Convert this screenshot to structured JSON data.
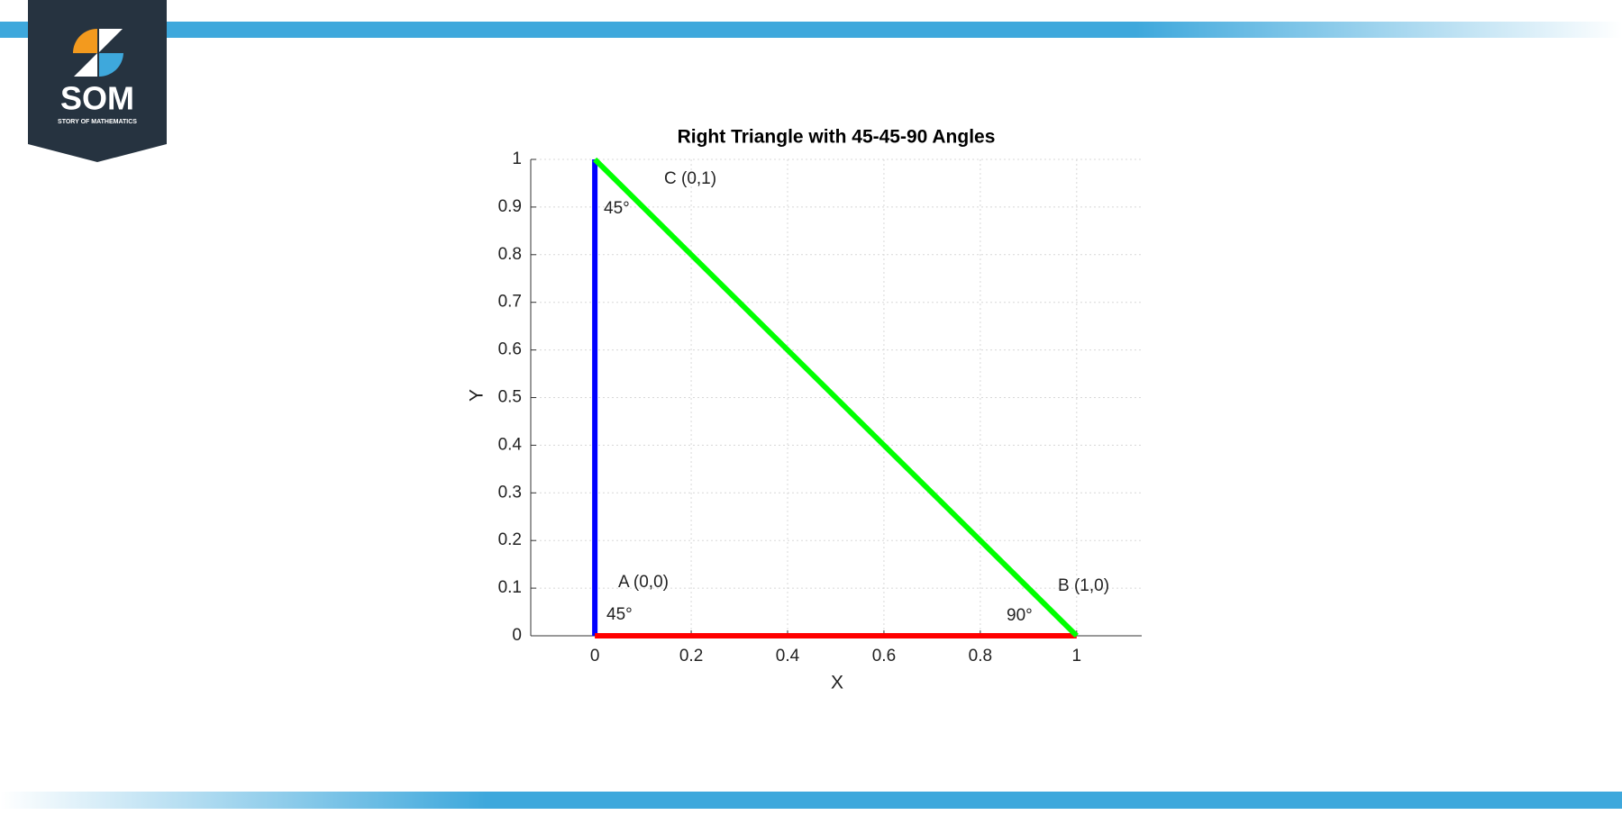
{
  "logo": {
    "title": "SOM",
    "subtitle": "STORY OF MATHEMATICS"
  },
  "chart_data": {
    "type": "line",
    "title": "Right Triangle with 45-45-90 Angles",
    "x_label": "X",
    "y_label": "Y",
    "series": [
      {
        "color": "#0000ff",
        "x": [
          0,
          0
        ],
        "values": [
          0,
          1
        ]
      },
      {
        "color": "#ff0000",
        "x": [
          0,
          1
        ],
        "values": [
          0,
          0
        ]
      },
      {
        "color": "#00ff00",
        "x": [
          0,
          1
        ],
        "values": [
          1,
          0
        ]
      }
    ],
    "xlim": [
      -0.133,
      1.135
    ],
    "ylim": [
      0,
      1
    ],
    "xticks": [
      0,
      0.2,
      0.4,
      0.6,
      0.8,
      1
    ],
    "yticks": [
      0,
      0.1,
      0.2,
      0.3,
      0.4,
      0.5,
      0.6,
      0.7,
      0.8,
      0.9,
      1
    ],
    "grid": true,
    "annotations": [
      "C (0,1)",
      "45°",
      "A (0,0)",
      "45°",
      "B (1,0)",
      "90°"
    ]
  }
}
